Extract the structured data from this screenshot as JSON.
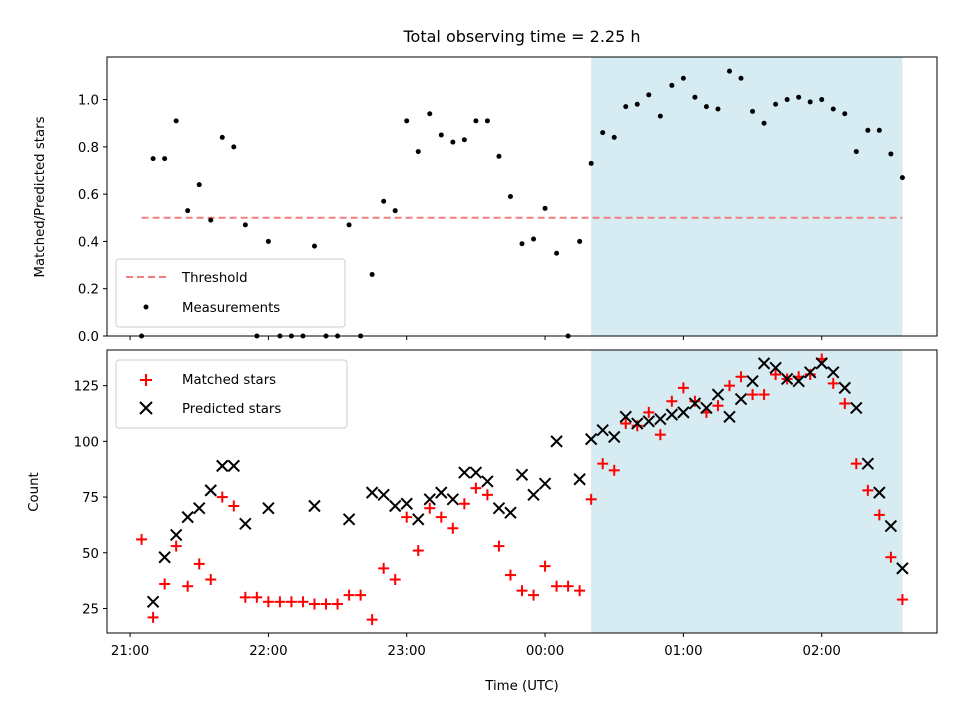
{
  "chart_data": [
    {
      "type": "scatter",
      "title": "Total observing time = 2.25 h",
      "ylabel": "Matched/Predicted stars",
      "xlabel": "",
      "xlim": [
        "20:50",
        "02:50"
      ],
      "ylim": [
        0,
        1.18
      ],
      "y_ticks": [
        0.0,
        0.2,
        0.4,
        0.6,
        0.8,
        1.0
      ],
      "y_tick_labels": [
        "0.0",
        "0.2",
        "0.4",
        "0.6",
        "0.8",
        "1.0"
      ],
      "x_tick_labels_shown": false,
      "grid": false,
      "legend_placement": "lower-left",
      "highlight_span": {
        "start": "00:20",
        "end": "02:35",
        "color": "#add8e6"
      },
      "threshold": {
        "name": "Threshold",
        "value": 0.5,
        "start": "21:05",
        "end": "02:35",
        "color": "#f08080",
        "style": "dashed"
      },
      "series": [
        {
          "name": "Measurements",
          "color": "#000000",
          "marker": "dot",
          "points": [
            [
              "21:05",
              0.0
            ],
            [
              "21:10",
              0.75
            ],
            [
              "21:15",
              0.75
            ],
            [
              "21:20",
              0.91
            ],
            [
              "21:25",
              0.53
            ],
            [
              "21:30",
              0.64
            ],
            [
              "21:35",
              0.49
            ],
            [
              "21:40",
              0.84
            ],
            [
              "21:45",
              0.8
            ],
            [
              "21:50",
              0.47
            ],
            [
              "21:55",
              0.0
            ],
            [
              "22:00",
              0.4
            ],
            [
              "22:05",
              0.0
            ],
            [
              "22:10",
              0.0
            ],
            [
              "22:15",
              0.0
            ],
            [
              "22:20",
              0.38
            ],
            [
              "22:25",
              0.0
            ],
            [
              "22:30",
              0.0
            ],
            [
              "22:35",
              0.47
            ],
            [
              "22:40",
              0.0
            ],
            [
              "22:45",
              0.26
            ],
            [
              "22:50",
              0.57
            ],
            [
              "22:55",
              0.53
            ],
            [
              "23:00",
              0.91
            ],
            [
              "23:05",
              0.78
            ],
            [
              "23:10",
              0.94
            ],
            [
              "23:15",
              0.85
            ],
            [
              "23:20",
              0.82
            ],
            [
              "23:25",
              0.83
            ],
            [
              "23:30",
              0.91
            ],
            [
              "23:35",
              0.91
            ],
            [
              "23:40",
              0.76
            ],
            [
              "23:45",
              0.59
            ],
            [
              "23:50",
              0.39
            ],
            [
              "23:55",
              0.41
            ],
            [
              "00:00",
              0.54
            ],
            [
              "00:05",
              0.35
            ],
            [
              "00:10",
              0.0
            ],
            [
              "00:15",
              0.4
            ],
            [
              "00:20",
              0.73
            ],
            [
              "00:25",
              0.86
            ],
            [
              "00:30",
              0.84
            ],
            [
              "00:35",
              0.97
            ],
            [
              "00:40",
              0.98
            ],
            [
              "00:45",
              1.02
            ],
            [
              "00:50",
              0.93
            ],
            [
              "00:55",
              1.06
            ],
            [
              "01:00",
              1.09
            ],
            [
              "01:05",
              1.01
            ],
            [
              "01:10",
              0.97
            ],
            [
              "01:15",
              0.96
            ],
            [
              "01:20",
              1.12
            ],
            [
              "01:25",
              1.09
            ],
            [
              "01:30",
              0.95
            ],
            [
              "01:35",
              0.9
            ],
            [
              "01:40",
              0.98
            ],
            [
              "01:45",
              1.0
            ],
            [
              "01:50",
              1.01
            ],
            [
              "01:55",
              0.99
            ],
            [
              "02:00",
              1.0
            ],
            [
              "02:05",
              0.96
            ],
            [
              "02:10",
              0.94
            ],
            [
              "02:15",
              0.78
            ],
            [
              "02:20",
              0.87
            ],
            [
              "02:25",
              0.87
            ],
            [
              "02:30",
              0.77
            ],
            [
              "02:35",
              0.67
            ]
          ]
        }
      ]
    },
    {
      "type": "scatter",
      "title": "",
      "ylabel": "Count",
      "xlabel": "Time (UTC)",
      "xlim": [
        "20:50",
        "02:50"
      ],
      "ylim": [
        14,
        141
      ],
      "y_ticks": [
        25,
        50,
        75,
        100,
        125
      ],
      "y_tick_labels": [
        "25",
        "50",
        "75",
        "100",
        "125"
      ],
      "x_ticks": [
        "21:00",
        "22:00",
        "23:00",
        "00:00",
        "01:00",
        "02:00"
      ],
      "x_tick_labels": [
        "21:00",
        "22:00",
        "23:00",
        "00:00",
        "01:00",
        "02:00"
      ],
      "grid": false,
      "legend_placement": "upper-left",
      "highlight_span": {
        "start": "00:20",
        "end": "02:35",
        "color": "#add8e6"
      },
      "series": [
        {
          "name": "Matched stars",
          "color": "#ff0000",
          "marker": "plus",
          "points": [
            [
              "21:05",
              56
            ],
            [
              "21:10",
              21
            ],
            [
              "21:15",
              36
            ],
            [
              "21:20",
              53
            ],
            [
              "21:25",
              35
            ],
            [
              "21:30",
              45
            ],
            [
              "21:35",
              38
            ],
            [
              "21:40",
              75
            ],
            [
              "21:45",
              71
            ],
            [
              "21:50",
              30
            ],
            [
              "21:55",
              30
            ],
            [
              "22:00",
              28
            ],
            [
              "22:05",
              28
            ],
            [
              "22:10",
              28
            ],
            [
              "22:15",
              28
            ],
            [
              "22:20",
              27
            ],
            [
              "22:25",
              27
            ],
            [
              "22:30",
              27
            ],
            [
              "22:35",
              31
            ],
            [
              "22:40",
              31
            ],
            [
              "22:45",
              20
            ],
            [
              "22:50",
              43
            ],
            [
              "22:55",
              38
            ],
            [
              "23:00",
              66
            ],
            [
              "23:05",
              51
            ],
            [
              "23:10",
              70
            ],
            [
              "23:15",
              66
            ],
            [
              "23:20",
              61
            ],
            [
              "23:25",
              72
            ],
            [
              "23:30",
              79
            ],
            [
              "23:35",
              76
            ],
            [
              "23:40",
              53
            ],
            [
              "23:45",
              40
            ],
            [
              "23:50",
              33
            ],
            [
              "23:55",
              31
            ],
            [
              "00:00",
              44
            ],
            [
              "00:05",
              35
            ],
            [
              "00:10",
              35
            ],
            [
              "00:15",
              33
            ],
            [
              "00:20",
              74
            ],
            [
              "00:25",
              90
            ],
            [
              "00:30",
              87
            ],
            [
              "00:35",
              108
            ],
            [
              "00:40",
              107
            ],
            [
              "00:45",
              113
            ],
            [
              "00:50",
              103
            ],
            [
              "00:55",
              118
            ],
            [
              "01:00",
              124
            ],
            [
              "01:05",
              118
            ],
            [
              "01:10",
              113
            ],
            [
              "01:15",
              116
            ],
            [
              "01:20",
              125
            ],
            [
              "01:25",
              129
            ],
            [
              "01:30",
              121
            ],
            [
              "01:35",
              121
            ],
            [
              "01:40",
              130
            ],
            [
              "01:45",
              128
            ],
            [
              "01:50",
              129
            ],
            [
              "01:55",
              130
            ],
            [
              "02:00",
              137
            ],
            [
              "02:05",
              126
            ],
            [
              "02:10",
              117
            ],
            [
              "02:15",
              90
            ],
            [
              "02:20",
              78
            ],
            [
              "02:25",
              67
            ],
            [
              "02:30",
              48
            ],
            [
              "02:35",
              29
            ]
          ]
        },
        {
          "name": "Predicted stars",
          "color": "#000000",
          "marker": "cross",
          "points": [
            [
              "21:10",
              28
            ],
            [
              "21:15",
              48
            ],
            [
              "21:20",
              58
            ],
            [
              "21:25",
              66
            ],
            [
              "21:30",
              70
            ],
            [
              "21:35",
              78
            ],
            [
              "21:40",
              89
            ],
            [
              "21:45",
              89
            ],
            [
              "21:50",
              63
            ],
            [
              "22:00",
              70
            ],
            [
              "22:20",
              71
            ],
            [
              "22:35",
              65
            ],
            [
              "22:45",
              77
            ],
            [
              "22:50",
              76
            ],
            [
              "22:55",
              71
            ],
            [
              "23:00",
              72
            ],
            [
              "23:05",
              65
            ],
            [
              "23:10",
              74
            ],
            [
              "23:15",
              77
            ],
            [
              "23:20",
              74
            ],
            [
              "23:25",
              86
            ],
            [
              "23:30",
              86
            ],
            [
              "23:35",
              82
            ],
            [
              "23:40",
              70
            ],
            [
              "23:45",
              68
            ],
            [
              "23:50",
              85
            ],
            [
              "23:55",
              76
            ],
            [
              "00:00",
              81
            ],
            [
              "00:05",
              100
            ],
            [
              "00:15",
              83
            ],
            [
              "00:20",
              101
            ],
            [
              "00:25",
              105
            ],
            [
              "00:30",
              102
            ],
            [
              "00:35",
              111
            ],
            [
              "00:40",
              108
            ],
            [
              "00:45",
              109
            ],
            [
              "00:50",
              110
            ],
            [
              "00:55",
              112
            ],
            [
              "01:00",
              113
            ],
            [
              "01:05",
              117
            ],
            [
              "01:10",
              115
            ],
            [
              "01:15",
              121
            ],
            [
              "01:20",
              111
            ],
            [
              "01:25",
              119
            ],
            [
              "01:30",
              127
            ],
            [
              "01:35",
              135
            ],
            [
              "01:40",
              133
            ],
            [
              "01:45",
              128
            ],
            [
              "01:50",
              127
            ],
            [
              "01:55",
              131
            ],
            [
              "02:00",
              135
            ],
            [
              "02:05",
              131
            ],
            [
              "02:10",
              124
            ],
            [
              "02:15",
              115
            ],
            [
              "02:20",
              90
            ],
            [
              "02:25",
              77
            ],
            [
              "02:30",
              62
            ],
            [
              "02:35",
              43
            ]
          ]
        }
      ]
    }
  ]
}
